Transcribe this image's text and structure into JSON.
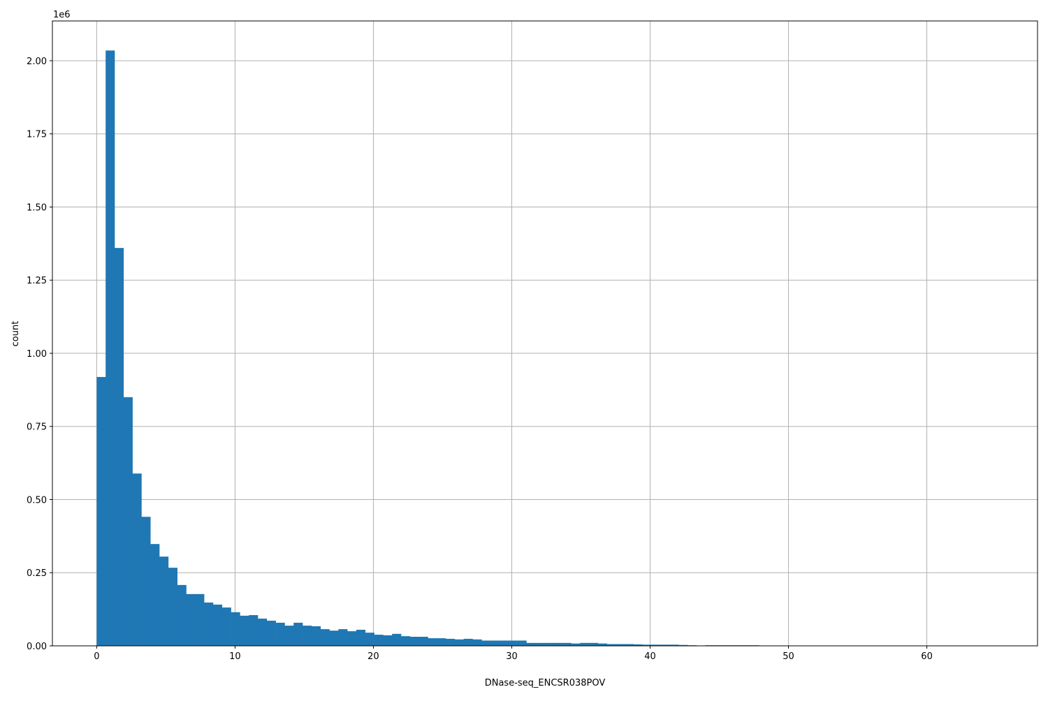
{
  "chart_data": {
    "type": "bar",
    "subtype": "histogram",
    "title": "",
    "xlabel": "DNase-seq_ENCSR038POV",
    "ylabel": "count",
    "y_offset_label": "1e6",
    "xlim": [
      -3.2,
      68.0
    ],
    "ylim": [
      0,
      2136000
    ],
    "xticks": [
      0,
      10,
      20,
      30,
      40,
      50,
      60
    ],
    "yticks": [
      0,
      250000,
      500000,
      750000,
      1000000,
      1250000,
      1500000,
      1750000,
      2000000
    ],
    "ytick_labels": [
      "0.00",
      "0.25",
      "0.50",
      "0.75",
      "1.00",
      "1.25",
      "1.50",
      "1.75",
      "2.00"
    ],
    "xtick_labels": [
      "0",
      "10",
      "20",
      "30",
      "40",
      "50",
      "60"
    ],
    "grid": true,
    "bar_color": "#1f77b4",
    "bin_start": 0,
    "bin_width": 0.647,
    "counts": [
      919000,
      2035000,
      1360000,
      850000,
      589000,
      441000,
      348000,
      305000,
      267000,
      208000,
      177000,
      177000,
      148000,
      141000,
      131000,
      115000,
      103000,
      105000,
      93000,
      86000,
      79000,
      69000,
      79000,
      69000,
      67000,
      57000,
      52000,
      57000,
      50000,
      55000,
      45000,
      38000,
      36000,
      41000,
      33000,
      31000,
      31000,
      26000,
      26000,
      24000,
      22000,
      24000,
      22000,
      18000,
      18000,
      18000,
      18000,
      18000,
      10000,
      10000,
      10000,
      10000,
      10000,
      8000,
      10000,
      10000,
      8000,
      6000,
      6000,
      6000,
      5000,
      4000,
      4000,
      4000,
      4000,
      3000,
      2000,
      1000,
      2000,
      2000,
      2000,
      2000,
      2000,
      2000,
      1000,
      1000,
      1000,
      1000,
      500,
      400,
      300,
      300,
      200,
      200,
      200,
      100,
      100,
      100,
      100,
      100,
      100,
      50,
      50,
      50,
      50,
      50,
      50,
      50,
      50,
      50
    ]
  }
}
